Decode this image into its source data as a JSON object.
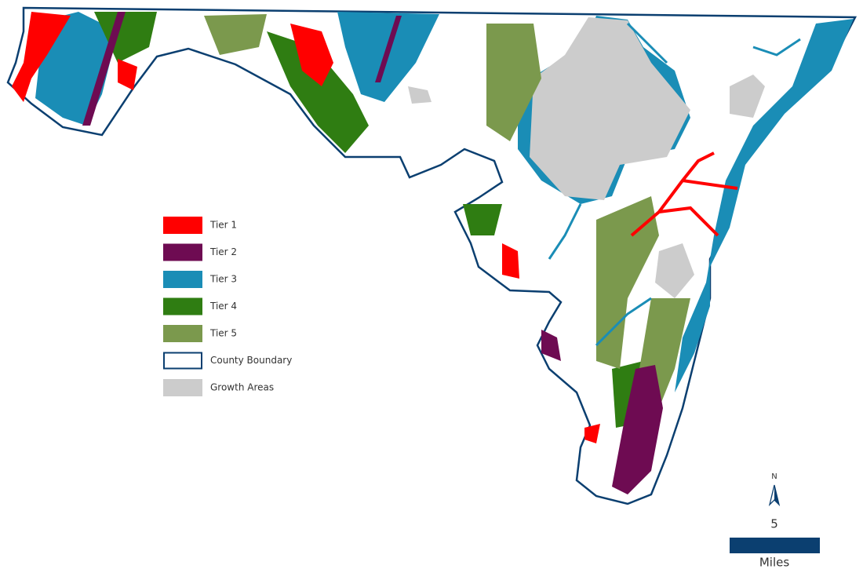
{
  "legend": {
    "items": [
      {
        "label": "Tier 1",
        "color": "#ff0000"
      },
      {
        "label": "Tier 2",
        "color": "#6e0b52"
      },
      {
        "label": "Tier 3",
        "color": "#1a8db6"
      },
      {
        "label": "Tier 4",
        "color": "#2f7d12"
      },
      {
        "label": "Tier 5",
        "color": "#7b994d"
      },
      {
        "label": "County Boundary",
        "color": "#0b3f70"
      },
      {
        "label": "Growth Areas",
        "color": "#cccccc"
      }
    ]
  },
  "north_arrow": {
    "label": "N"
  },
  "scale_bar": {
    "distance": 5,
    "unit": "Miles",
    "color": "#0b3f70"
  }
}
